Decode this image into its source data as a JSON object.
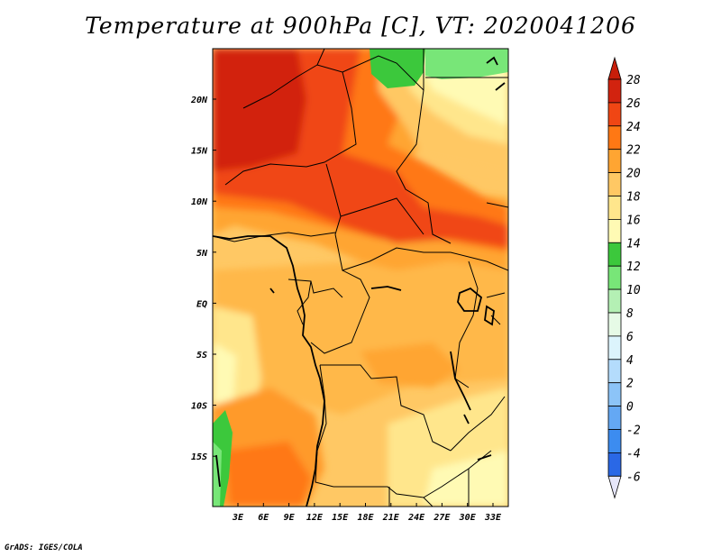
{
  "title": "Temperature at 900hPa [C], VT: 2020041206",
  "credit": "GrADS: IGES/COLA",
  "map": {
    "lat_labels": [
      "20N",
      "15N",
      "10N",
      "5N",
      "EQ",
      "5S",
      "10S",
      "15S"
    ],
    "lon_labels": [
      "3E",
      "6E",
      "9E",
      "12E",
      "15E",
      "18E",
      "21E",
      "24E",
      "27E",
      "30E",
      "33E"
    ]
  },
  "colorbar": {
    "levels": [
      "-6",
      "-4",
      "-2",
      "0",
      "2",
      "4",
      "6",
      "8",
      "10",
      "12",
      "14",
      "16",
      "18",
      "20",
      "22",
      "24",
      "26",
      "28"
    ],
    "colors": [
      "#0a0a78",
      "#1840c8",
      "#2a68e6",
      "#3c8cf0",
      "#64a8f4",
      "#8cc4f8",
      "#b4dcfc",
      "#dcf4fc",
      "#e6fae6",
      "#b4f0b4",
      "#78e678",
      "#3cc83c",
      "#fffab4",
      "#ffe68c",
      "#ffc864",
      "#ffa532",
      "#ff7814",
      "#f04614",
      "#d2230f",
      "#a00f0a"
    ],
    "under_color": "#e6e6fa",
    "over_color": "#c81e0a"
  }
}
